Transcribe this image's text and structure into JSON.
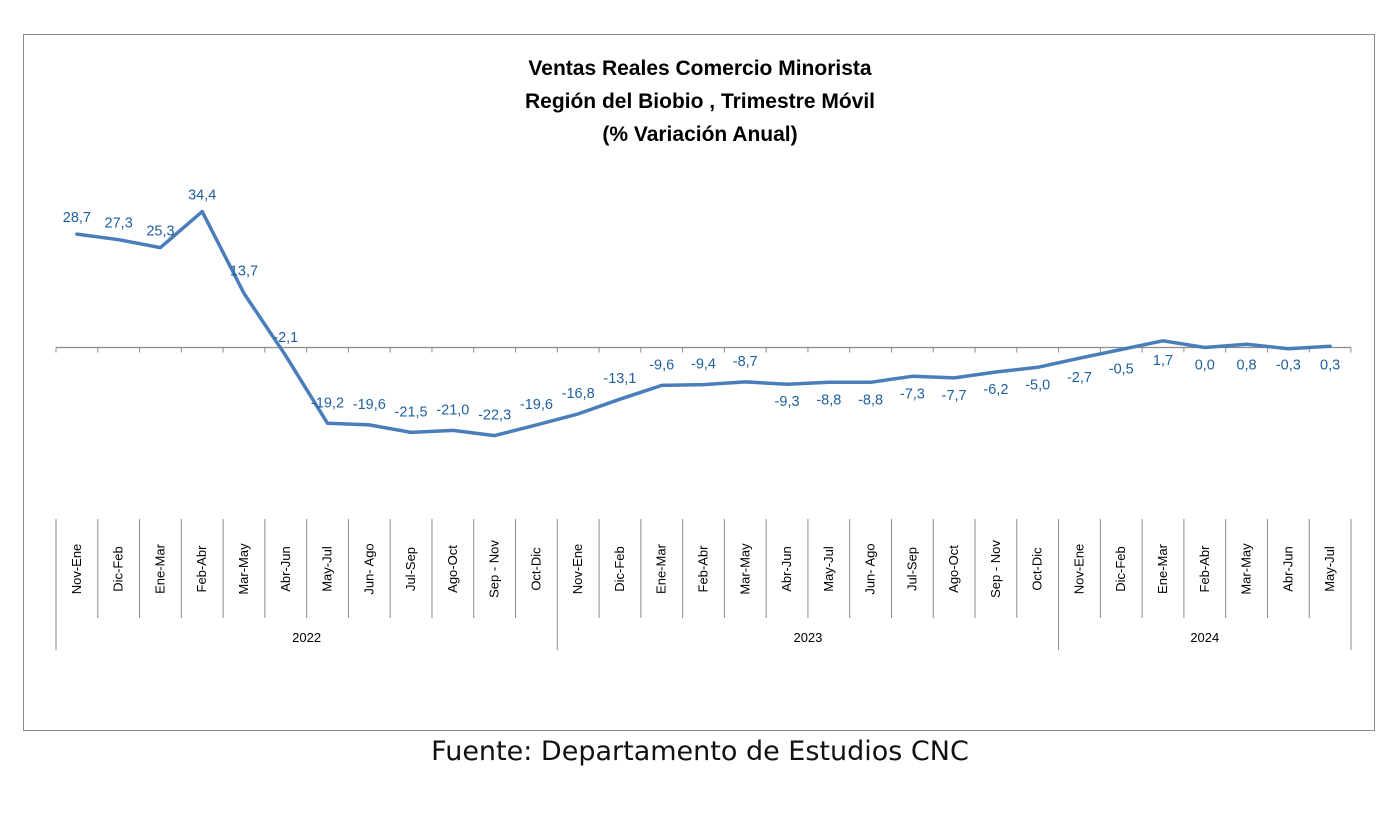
{
  "chart_data": {
    "type": "line",
    "title": [
      "Ventas Reales Comercio Minorista",
      "Región del Biobio , Trimestre Móvil",
      "(% Variación Anual)"
    ],
    "categories": [
      "Nov-Ene",
      "Dic-Feb",
      "Ene-Mar",
      "Feb-Abr",
      "Mar-May",
      "Abr-Jun",
      "May-Jul",
      "Jun- Ago",
      "Jul-Sep",
      "Ago-Oct",
      "Sep - Nov",
      "Oct-Dic",
      "Nov-Ene",
      "Dic-Feb",
      "Ene-Mar",
      "Feb-Abr",
      "Mar-May",
      "Abr-Jun",
      "May-Jul",
      "Jun- Ago",
      "Jul-Sep",
      "Ago-Oct",
      "Sep - Nov",
      "Oct-Dic",
      "Nov-Ene",
      "Dic-Feb",
      "Ene-Mar",
      "Feb-Abr",
      "Mar-May",
      "Abr-Jun",
      "May-Jul"
    ],
    "groups": [
      {
        "label": "2022",
        "count": 12
      },
      {
        "label": "2023",
        "count": 12
      },
      {
        "label": "2024",
        "count": 7
      }
    ],
    "series": [
      {
        "values": [
          28.7,
          27.3,
          25.3,
          34.4,
          13.7,
          -2.1,
          -19.2,
          -19.6,
          -21.5,
          -21.0,
          -22.3,
          -19.6,
          -16.8,
          -13.1,
          -9.6,
          -9.4,
          -8.7,
          -9.3,
          -8.8,
          -8.8,
          -7.3,
          -7.7,
          -6.2,
          -5.0,
          -2.7,
          -0.5,
          1.7,
          0.0,
          0.8,
          -0.3,
          0.3
        ],
        "labels": [
          "28,7",
          "27,3",
          "25,3",
          "34,4",
          "13,7",
          "-2,1",
          "-19,2",
          "-19,6",
          "-21,5",
          "-21,0",
          "-22,3",
          "-19,6",
          "-16,8",
          "-13,1",
          "-9,6",
          "-9,4",
          "-8,7",
          "-9,3",
          "-8,8",
          "-8,8",
          "-7,3",
          "-7,7",
          "-6,2",
          "-5,0",
          "-2,7",
          "-0,5",
          "1,7",
          "0,0",
          "0,8",
          "-0,3",
          "0,3"
        ],
        "color": "#4a7ebb"
      }
    ],
    "ylim": [
      -35,
      50
    ],
    "label_color": "#1f5f9e",
    "grid": false,
    "legend": "none"
  },
  "source": "Fuente: Departamento de Estudios CNC"
}
